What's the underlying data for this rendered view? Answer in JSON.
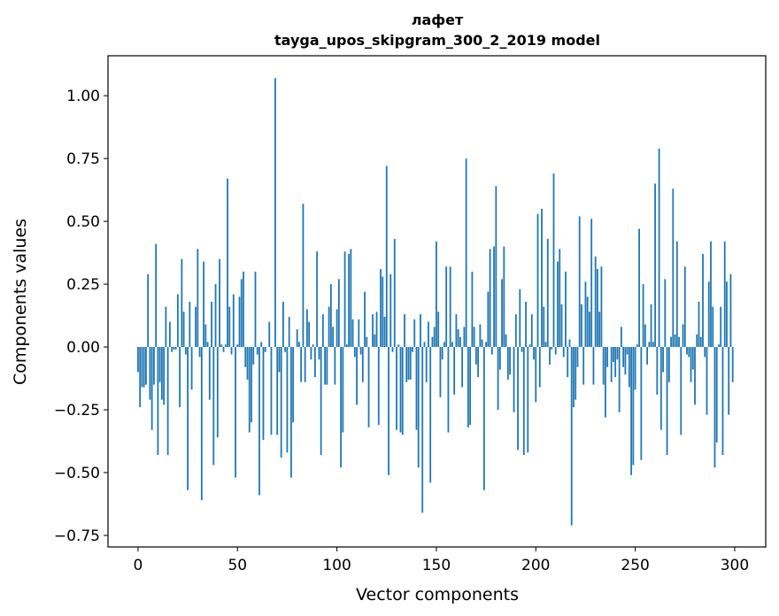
{
  "chart_data": {
    "type": "bar",
    "title": [
      "лафет",
      "tayga_upos_skipgram_300_2_2019 model"
    ],
    "xlabel": "Vector components",
    "ylabel": "Components values",
    "xlim": [
      -15.1,
      315.6
    ],
    "ylim": [
      -0.796,
      1.159
    ],
    "xticks": [
      0,
      50,
      100,
      150,
      200,
      250,
      300
    ],
    "xtick_labels": [
      "0",
      "50",
      "100",
      "150",
      "200",
      "250",
      "300"
    ],
    "yticks": [
      -0.75,
      -0.5,
      -0.25,
      0,
      0.25,
      0.5,
      0.75,
      1.0
    ],
    "ytick_labels": [
      "−0.75",
      "−0.50",
      "−0.25",
      "0.00",
      "0.25",
      "0.50",
      "0.75",
      "1.00"
    ],
    "grid": false,
    "color": "#1f77b4",
    "values": [
      -0.1,
      -0.24,
      -0.16,
      -0.16,
      -0.15,
      0.29,
      -0.21,
      -0.33,
      -0.15,
      0.41,
      -0.43,
      -0.14,
      -0.21,
      -0.23,
      0.16,
      -0.43,
      0.1,
      -0.02,
      -0.01,
      -0.01,
      0.21,
      -0.24,
      0.35,
      0.14,
      -0.03,
      -0.57,
      0.18,
      -0.17,
      0.0,
      0.16,
      0.39,
      -0.04,
      -0.61,
      0.34,
      0.09,
      0.02,
      -0.21,
      0.18,
      -0.47,
      0.25,
      -0.36,
      0.35,
      0.01,
      -0.02,
      0.01,
      0.67,
      0.16,
      -0.03,
      0.21,
      -0.52,
      0.01,
      0.2,
      0.27,
      0.3,
      -0.08,
      -0.13,
      -0.34,
      -0.3,
      -0.07,
      0.3,
      -0.03,
      -0.59,
      0.02,
      -0.37,
      -0.02,
      0.0,
      0.1,
      -0.35,
      0.0,
      1.07,
      -0.35,
      -0.1,
      -0.44,
      0.18,
      -0.02,
      -0.42,
      0.12,
      -0.52,
      -0.3,
      0.0,
      0.07,
      0.02,
      -0.14,
      0.57,
      -0.14,
      0.15,
      0.1,
      -0.05,
      0.01,
      -0.12,
      0.38,
      -0.05,
      -0.43,
      0.13,
      -0.15,
      -0.15,
      0.16,
      0.25,
      0.08,
      -0.15,
      0.15,
      0.27,
      -0.48,
      -0.34,
      0.38,
      0.01,
      0.37,
      0.39,
      0.11,
      -0.04,
      -0.23,
      0.11,
      -0.03,
      -0.14,
      0.22,
      0.04,
      -0.32,
      0.0,
      0.13,
      0.05,
      0.14,
      -0.31,
      0.31,
      0.28,
      0.12,
      0.72,
      -0.51,
      0.29,
      -0.02,
      0.43,
      -0.33,
      0.01,
      -0.34,
      -0.35,
      0.13,
      -0.14,
      -0.13,
      -0.13,
      -0.02,
      0.11,
      -0.33,
      -0.48,
      0.13,
      -0.66,
      0.02,
      -0.14,
      0.1,
      -0.54,
      0.04,
      0.08,
      0.42,
      0.14,
      -0.2,
      -0.05,
      0.02,
      0.32,
      -0.34,
      0.32,
      0.02,
      -0.19,
      0.13,
      0.07,
      0.04,
      -0.16,
      0.08,
      0.75,
      -0.32,
      -0.31,
      0.3,
      0.08,
      -0.07,
      -0.12,
      0.09,
      0.03,
      -0.57,
      0.02,
      0.22,
      0.39,
      -0.03,
      0.4,
      0.64,
      -0.25,
      -0.09,
      0.27,
      0.4,
      0.05,
      -0.13,
      -0.11,
      0.0,
      -0.26,
      0.13,
      -0.41,
      0.23,
      -0.02,
      -0.43,
      0.18,
      -0.42,
      0.01,
      0.13,
      -0.05,
      -0.22,
      0.53,
      -0.16,
      0.55,
      0.16,
      0.02,
      0.43,
      -0.07,
      -0.01,
      0.69,
      -0.03,
      0.34,
      0.39,
      0.17,
      -0.04,
      0.3,
      -0.12,
      0.03,
      -0.71,
      -0.24,
      -0.21,
      -0.08,
      0.52,
      0.17,
      -0.15,
      0.26,
      0.2,
      0.14,
      0.51,
      -0.15,
      0.36,
      0.31,
      0.14,
      0.32,
      -0.15,
      -0.28,
      -0.08,
      0.0,
      -0.14,
      -0.06,
      -0.12,
      -0.05,
      -0.26,
      0.08,
      -0.08,
      -0.11,
      -0.03,
      -0.16,
      -0.51,
      -0.47,
      -0.17,
      0.01,
      0.47,
      -0.45,
      0.25,
      0.09,
      -0.07,
      0.02,
      0.17,
      0.02,
      0.65,
      -0.19,
      0.79,
      -0.33,
      -0.1,
      0.27,
      -0.43,
      -0.14,
      0.04,
      0.63,
      0.05,
      0.42,
      0.04,
      -0.35,
      0.09,
      0.32,
      -0.03,
      -0.04,
      -0.14,
      -0.09,
      -0.23,
      0.05,
      0.18,
      0.04,
      0.37,
      -0.04,
      -0.27,
      0.26,
      0.42,
      0.16,
      -0.48,
      -0.38,
      0.01,
      0.16,
      -0.43,
      0.42,
      0.26,
      -0.27,
      0.29,
      -0.14
    ]
  }
}
